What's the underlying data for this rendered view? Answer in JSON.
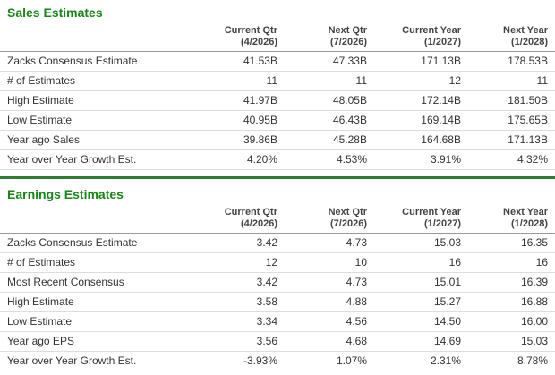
{
  "colors": {
    "heading_green": "#168716",
    "divider_green": "#2e7d32",
    "body_text": "#333333",
    "header_text": "#444444",
    "header_border": "#999999",
    "row_border": "#dddddd",
    "background": "#ffffff"
  },
  "chart_data": [
    {
      "type": "table",
      "title": "Sales Estimates",
      "columns": [
        {
          "label": "Current Qtr",
          "period": "(4/2026)"
        },
        {
          "label": "Next Qtr",
          "period": "(7/2026)"
        },
        {
          "label": "Current Year",
          "period": "(1/2027)"
        },
        {
          "label": "Next Year",
          "period": "(1/2028)"
        }
      ],
      "rows": [
        {
          "label": "Zacks Consensus Estimate",
          "values": [
            "41.53B",
            "47.33B",
            "171.13B",
            "178.53B"
          ]
        },
        {
          "label": "# of Estimates",
          "values": [
            "11",
            "11",
            "12",
            "11"
          ]
        },
        {
          "label": "High Estimate",
          "values": [
            "41.97B",
            "48.05B",
            "172.14B",
            "181.50B"
          ]
        },
        {
          "label": "Low Estimate",
          "values": [
            "40.95B",
            "46.43B",
            "169.14B",
            "175.65B"
          ]
        },
        {
          "label": "Year ago Sales",
          "values": [
            "39.86B",
            "45.28B",
            "164.68B",
            "171.13B"
          ]
        },
        {
          "label": "Year over Year Growth Est.",
          "values": [
            "4.20%",
            "4.53%",
            "3.91%",
            "4.32%"
          ]
        }
      ]
    },
    {
      "type": "table",
      "title": "Earnings Estimates",
      "columns": [
        {
          "label": "Current Qtr",
          "period": "(4/2026)"
        },
        {
          "label": "Next Qtr",
          "period": "(7/2026)"
        },
        {
          "label": "Current Year",
          "period": "(1/2027)"
        },
        {
          "label": "Next Year",
          "period": "(1/2028)"
        }
      ],
      "rows": [
        {
          "label": "Zacks Consensus Estimate",
          "values": [
            "3.42",
            "4.73",
            "15.03",
            "16.35"
          ]
        },
        {
          "label": "# of Estimates",
          "values": [
            "12",
            "10",
            "16",
            "16"
          ]
        },
        {
          "label": "Most Recent Consensus",
          "values": [
            "3.42",
            "4.73",
            "15.01",
            "16.39"
          ]
        },
        {
          "label": "High Estimate",
          "values": [
            "3.58",
            "4.88",
            "15.27",
            "16.88"
          ]
        },
        {
          "label": "Low Estimate",
          "values": [
            "3.34",
            "4.56",
            "14.50",
            "16.00"
          ]
        },
        {
          "label": "Year ago EPS",
          "values": [
            "3.56",
            "4.68",
            "14.69",
            "15.03"
          ]
        },
        {
          "label": "Year over Year Growth Est.",
          "values": [
            "-3.93%",
            "1.07%",
            "2.31%",
            "8.78%"
          ]
        }
      ]
    }
  ]
}
